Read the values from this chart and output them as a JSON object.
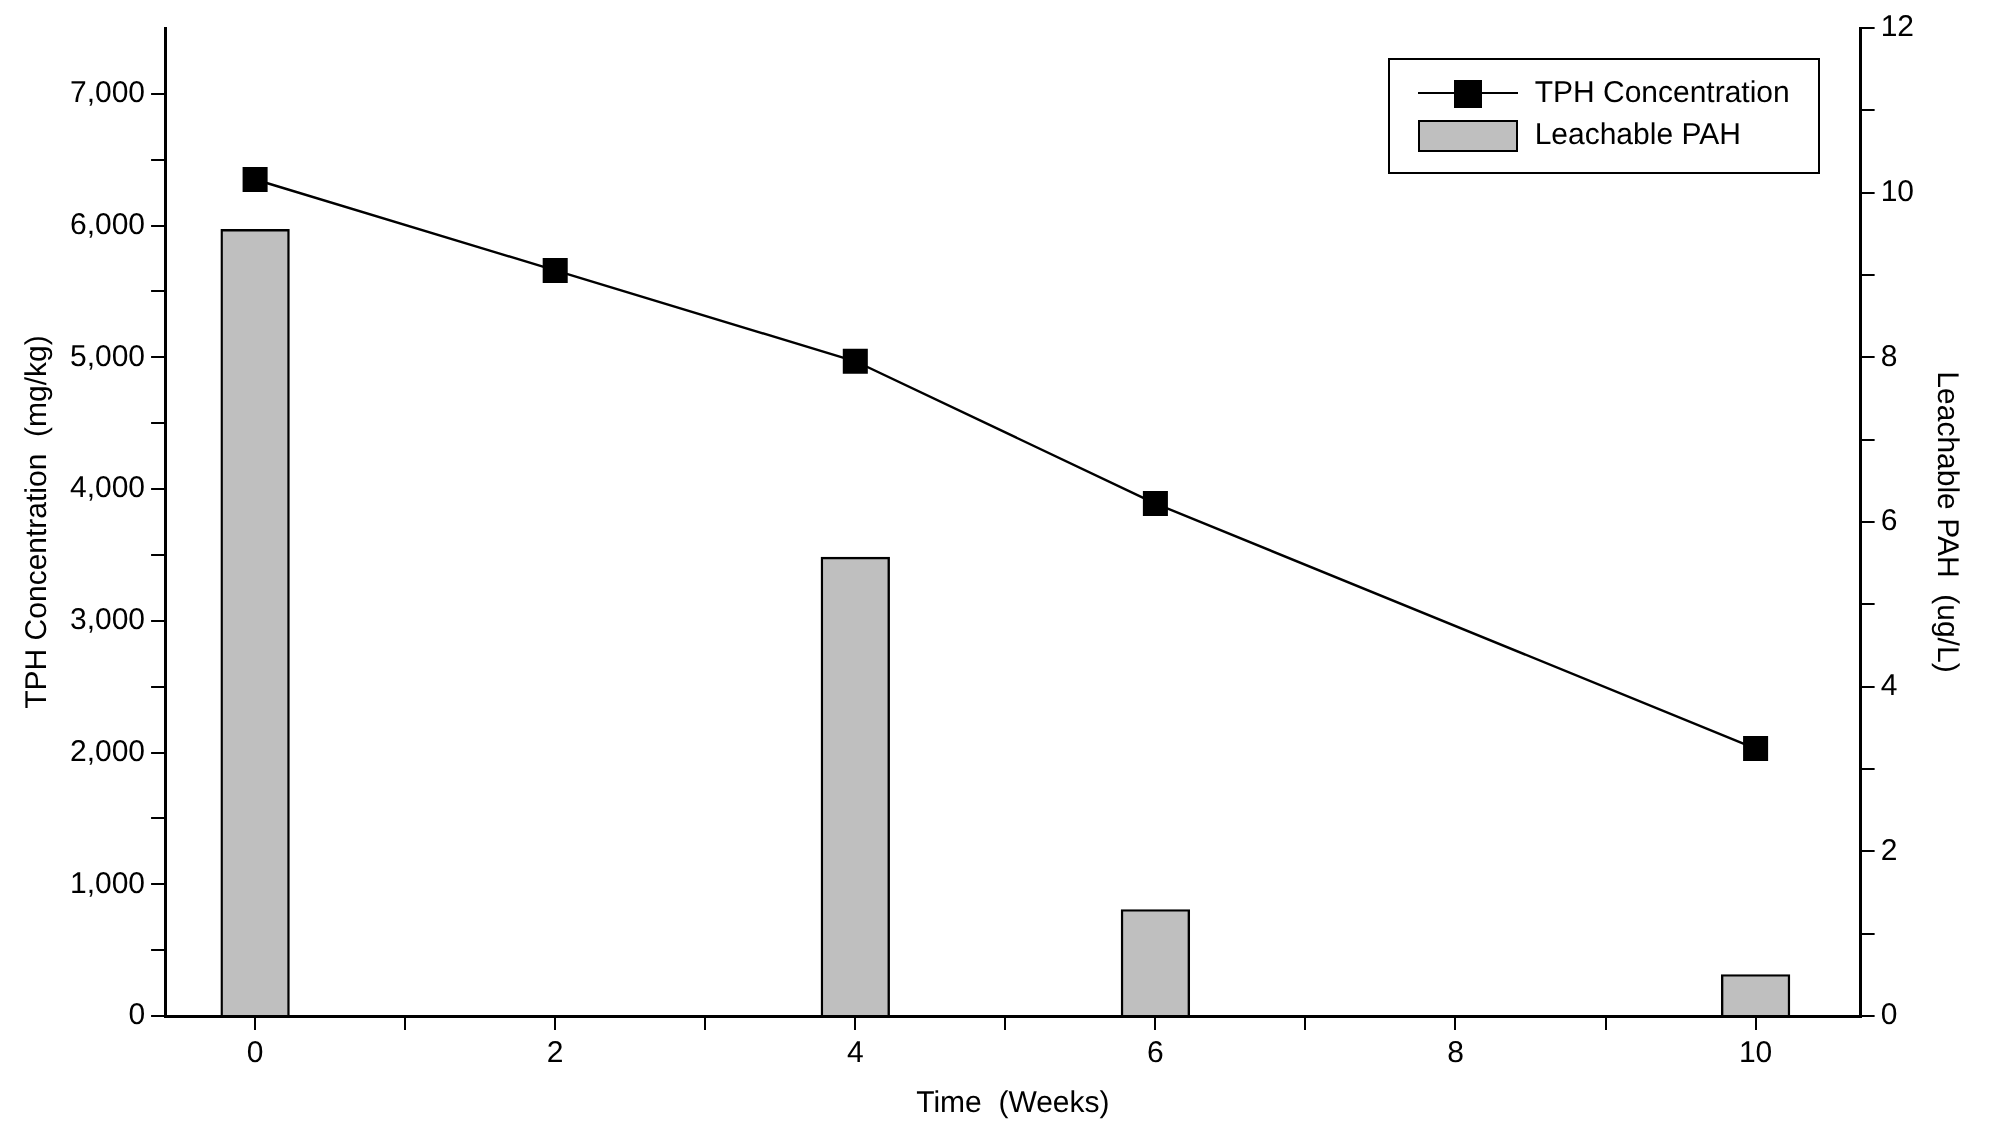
{
  "chart_data": {
    "type": "line",
    "xlabel": "Time  (Weeks)",
    "ylabel": "TPH Concentration  (mg/kg)",
    "y2label": "Leachable PAH  (ug/L)",
    "x": [
      0,
      2,
      4,
      6,
      10
    ],
    "series": [
      {
        "name": "TPH Concentration",
        "color": "#000000",
        "values": [
          6350,
          5660,
          4970,
          3890,
          2030
        ],
        "marker": "square"
      },
      {
        "name": "Leachable PAH",
        "type": "bar",
        "axis": "y2",
        "color": "#bfbfbf",
        "x": [
          0,
          4,
          6,
          10
        ],
        "values": [
          9.55,
          5.57,
          1.29,
          0.5
        ]
      }
    ],
    "xlim": [
      -0.6,
      10.7
    ],
    "xticks": [
      0,
      {
        "value": 1,
        "label": null
      },
      2,
      {
        "value": 3,
        "label": null
      },
      4,
      {
        "value": 5,
        "label": null
      },
      6,
      {
        "value": 7,
        "label": null
      },
      8,
      {
        "value": 9,
        "label": null
      },
      10
    ],
    "ylim": [
      0,
      7500
    ],
    "yticks": [
      {
        "value": 0,
        "label": "0"
      },
      {
        "value": 500,
        "label": null
      },
      {
        "value": 1000,
        "label": "1,000"
      },
      {
        "value": 1500,
        "label": null
      },
      {
        "value": 2000,
        "label": "2,000"
      },
      {
        "value": 2500,
        "label": null
      },
      {
        "value": 3000,
        "label": "3,000"
      },
      {
        "value": 3500,
        "label": null
      },
      {
        "value": 4000,
        "label": "4,000"
      },
      {
        "value": 4500,
        "label": null
      },
      {
        "value": 5000,
        "label": "5,000"
      },
      {
        "value": 5500,
        "label": null
      },
      {
        "value": 6000,
        "label": "6,000"
      },
      {
        "value": 6500,
        "label": null
      },
      {
        "value": 7000,
        "label": "7,000"
      }
    ],
    "y2lim": [
      0,
      12
    ],
    "y2ticks": [
      0,
      {
        "value": 1,
        "label": null
      },
      2,
      {
        "value": 3,
        "label": null
      },
      4,
      {
        "value": 5,
        "label": null
      },
      6,
      {
        "value": 7,
        "label": null
      },
      8,
      {
        "value": 9,
        "label": null
      },
      10,
      {
        "value": 11,
        "label": null
      },
      12
    ],
    "grid": false,
    "legend": "top right"
  }
}
